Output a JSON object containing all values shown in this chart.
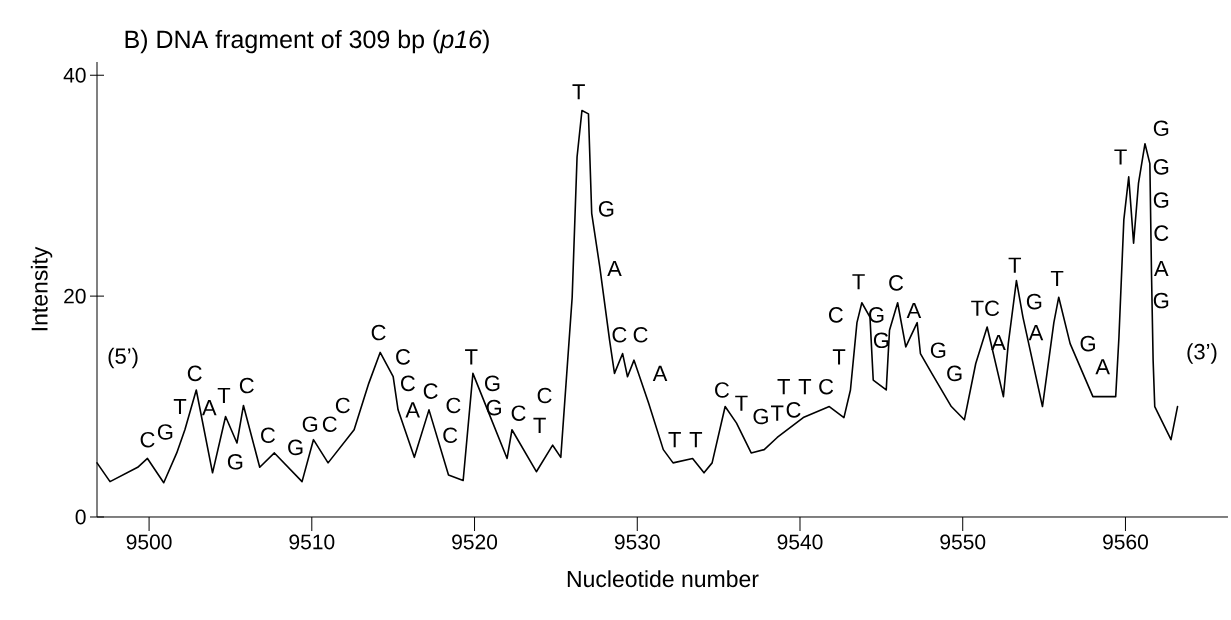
{
  "chart_data": {
    "type": "line",
    "title": "B) DNA fragment of 309 bp (*p16*)",
    "xlabel": "Nucleotide number",
    "ylabel": "Intensity",
    "color": "#000000",
    "x": [
      9496.8,
      9497.6,
      9499.3,
      9499.9,
      9500.9,
      9501.7,
      9502.2,
      9502.9,
      9503.9,
      9504.7,
      9505.4,
      9505.8,
      9506.8,
      9507.7,
      9509.4,
      9510.1,
      9511.0,
      9512.6,
      9513.5,
      9514.2,
      9515.0,
      9515.3,
      9516.3,
      9517.2,
      9518.4,
      9519.3,
      9519.9,
      9520.8,
      9522.0,
      9522.3,
      9523.8,
      9524.8,
      9525.3,
      9526.0,
      9526.3,
      9526.6,
      9527.0,
      9527.2,
      9527.7,
      9528.3,
      9528.6,
      9529.1,
      9529.4,
      9529.8,
      9530.7,
      9531.6,
      9532.2,
      9533.4,
      9534.1,
      9534.6,
      9535.4,
      9536.1,
      9537.0,
      9537.8,
      9538.6,
      9540.2,
      9541.8,
      9542.7,
      9543.1,
      9543.5,
      9543.8,
      9544.3,
      9544.5,
      9545.3,
      9545.5,
      9546.0,
      9546.5,
      9547.2,
      9547.4,
      9548.1,
      9549.3,
      9550.1,
      9550.8,
      9551.5,
      9552.5,
      9552.8,
      9553.3,
      9553.7,
      9554.9,
      9555.6,
      9555.9,
      9556.6,
      9558.0,
      9559.4,
      9559.6,
      9559.9,
      9560.2,
      9560.5,
      9560.8,
      9561.2,
      9561.5,
      9561.6,
      9561.7,
      9561.8,
      9562.8,
      9563.2
    ],
    "values": [
      4.9,
      3.2,
      4.5,
      5.3,
      3.1,
      5.8,
      7.9,
      11.5,
      4.0,
      9.1,
      6.7,
      10.1,
      4.5,
      5.8,
      3.2,
      7.0,
      4.9,
      7.9,
      12.1,
      14.9,
      12.7,
      9.7,
      5.4,
      9.7,
      3.8,
      3.3,
      13.0,
      9.7,
      5.3,
      7.9,
      4.1,
      6.5,
      5.4,
      19.9,
      32.6,
      36.8,
      36.5,
      27.5,
      22.6,
      16.0,
      13.0,
      14.8,
      12.7,
      14.2,
      10.3,
      6.1,
      4.9,
      5.3,
      4.0,
      4.9,
      10.0,
      8.5,
      5.8,
      6.1,
      7.2,
      9.0,
      10.0,
      9.0,
      11.5,
      17.6,
      19.4,
      18.1,
      12.4,
      11.5,
      16.9,
      19.4,
      15.4,
      17.6,
      14.8,
      13.0,
      10.0,
      8.8,
      13.9,
      17.2,
      10.9,
      15.7,
      21.4,
      18.1,
      10.0,
      17.6,
      19.9,
      15.7,
      10.9,
      10.9,
      16.3,
      26.9,
      30.8,
      24.8,
      30.2,
      33.8,
      32.0,
      22.1,
      14.2,
      10.0,
      7.0,
      10.0
    ],
    "xlim": [
      9496.8,
      9566.3
    ],
    "ylim": [
      0,
      41.2
    ],
    "xticks": [
      9500,
      9510,
      9520,
      9530,
      9540,
      9550,
      9560
    ],
    "yticks": [
      0,
      20,
      40
    ],
    "annotations": [
      "(5’)",
      "C",
      "G",
      "T",
      "C",
      "A",
      "T",
      "G",
      "C",
      "C",
      "G",
      "G",
      "C",
      "C",
      "C",
      "C",
      "C",
      "A",
      "C",
      "C",
      "C",
      "T",
      "G",
      "G",
      "C",
      "C",
      "T",
      "T",
      "G",
      "A",
      "C",
      "C",
      "A",
      "T",
      "T",
      "C",
      "T",
      "G",
      "T",
      "C",
      "T",
      "T",
      "C",
      "T",
      "C",
      "T",
      "G",
      "G",
      "C",
      "A",
      "G",
      "G",
      "T",
      "C",
      "A",
      "T",
      "G",
      "A",
      "T",
      "G",
      "A",
      "T",
      "G",
      "G",
      "G",
      "C",
      "A",
      "G",
      "(3’)"
    ]
  }
}
